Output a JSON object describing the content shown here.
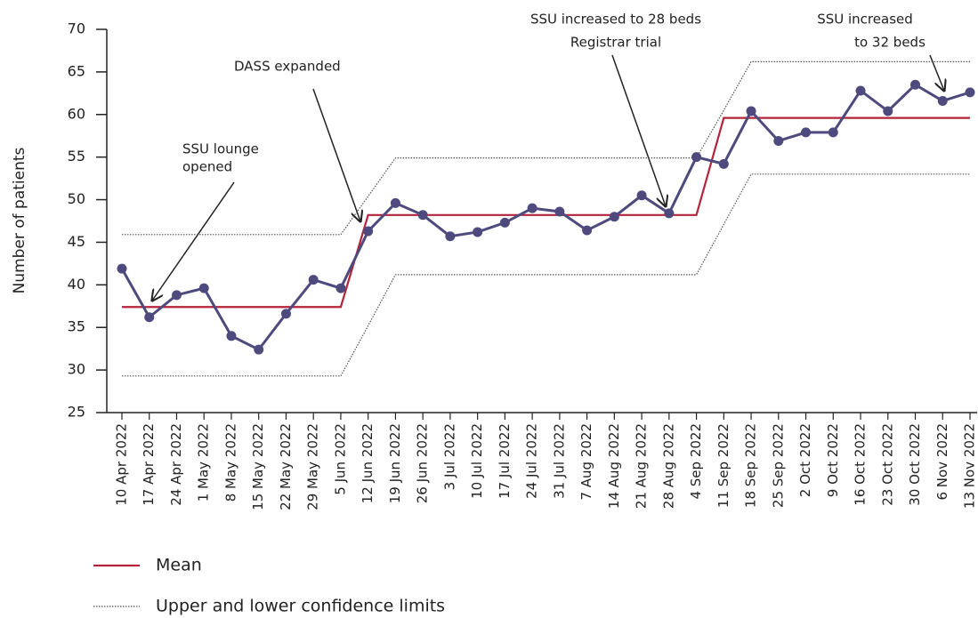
{
  "chart_data": {
    "type": "line",
    "ylabel": "Number of patients",
    "categories": [
      "10 Apr 2022",
      "17 Apr 2022",
      "24 Apr 2022",
      "1 May 2022",
      "8 May 2022",
      "15 May 2022",
      "22 May 2022",
      "29 May 2022",
      "5 Jun 2022",
      "12 Jun 2022",
      "19 Jun 2022",
      "26 Jun 2022",
      "3 Jul 2022",
      "10 Jul 2022",
      "17 Jul 2022",
      "24 Jul 2022",
      "31 Jul 2022",
      "7 Aug 2022",
      "14 Aug 2022",
      "21 Aug 2022",
      "28 Aug 2022",
      "4 Sep 2022",
      "11 Sep 2022",
      "18 Sep 2022",
      "25 Sep 2022",
      "2 Oct 2022",
      "9 Oct 2022",
      "16 Oct 2022",
      "23 Oct 2022",
      "30 Oct 2022",
      "6 Nov 2022",
      "13 Nov 2022"
    ],
    "series": [
      {
        "color": "#4e4a7e",
        "values": [
          41.9,
          36.2,
          38.8,
          39.6,
          34.0,
          32.4,
          36.6,
          40.6,
          39.6,
          46.3,
          49.6,
          48.2,
          45.7,
          46.2,
          47.3,
          49.0,
          48.6,
          46.4,
          48.0,
          50.5,
          48.4,
          55.0,
          54.2,
          60.4,
          56.9,
          57.9,
          57.9,
          62.8,
          60.4,
          63.5,
          61.6,
          62.6
        ]
      },
      {
        "name": "Mean",
        "color": "#b5233b",
        "values": [
          37.4,
          37.4,
          37.4,
          37.4,
          37.4,
          37.4,
          37.4,
          37.4,
          37.4,
          48.2,
          48.2,
          48.2,
          48.2,
          48.2,
          48.2,
          48.2,
          48.2,
          48.2,
          48.2,
          48.2,
          48.2,
          48.2,
          59.6,
          59.6,
          59.6,
          59.6,
          59.6,
          59.6,
          59.6,
          59.6,
          59.6,
          59.6
        ]
      },
      {
        "name": "Upper and lower confidence limits",
        "color": "#555555",
        "style": "dotted",
        "upper": [
          45.9,
          45.9,
          45.9,
          45.9,
          45.9,
          45.9,
          45.9,
          45.9,
          45.9,
          50.4,
          54.9,
          54.9,
          54.9,
          54.9,
          54.9,
          54.9,
          54.9,
          54.9,
          54.9,
          54.9,
          54.9,
          54.9,
          60.5,
          66.2,
          66.2,
          66.2,
          66.2,
          66.2,
          66.2,
          66.2,
          66.2,
          66.2
        ],
        "lower": [
          29.3,
          29.3,
          29.3,
          29.3,
          29.3,
          29.3,
          29.3,
          29.3,
          29.3,
          35.2,
          41.2,
          41.2,
          41.2,
          41.2,
          41.2,
          41.2,
          41.2,
          41.2,
          41.2,
          41.2,
          41.2,
          41.2,
          47.1,
          53.0,
          53.0,
          53.0,
          53.0,
          53.0,
          53.0,
          53.0,
          53.0,
          53.0
        ]
      }
    ],
    "ylim": [
      25,
      70
    ],
    "yticks": [
      25,
      30,
      35,
      40,
      45,
      50,
      55,
      60,
      65,
      70
    ],
    "annotations": [
      {
        "lines": [
          "SSU lounge",
          "opened"
        ]
      },
      {
        "lines": [
          "DASS expanded"
        ]
      },
      {
        "lines": [
          "SSU increased to 28 beds",
          "Registrar trial"
        ]
      },
      {
        "lines": [
          "SSU increased",
          "to 32 beds"
        ]
      }
    ]
  }
}
